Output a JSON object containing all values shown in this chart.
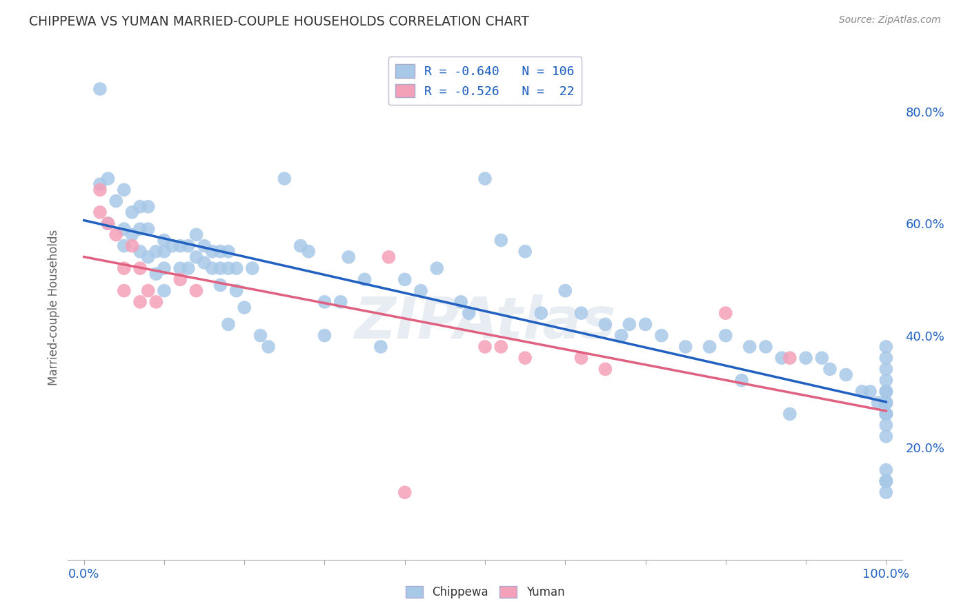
{
  "title": "CHIPPEWA VS YUMAN MARRIED-COUPLE HOUSEHOLDS CORRELATION CHART",
  "source": "Source: ZipAtlas.com",
  "ylabel": "Married-couple Households",
  "watermark": "ZIPAtlas",
  "chippewa_R": -0.64,
  "chippewa_N": 106,
  "yuman_R": -0.526,
  "yuman_N": 22,
  "chippewa_color": "#a8c8e8",
  "yuman_color": "#f4a0b8",
  "chippewa_line_color": "#2060c0",
  "yuman_line_color": "#e06080",
  "legend_text_color": "#2060c0",
  "background_color": "#ffffff",
  "grid_color": "#c8c8d8",
  "title_color": "#333333",
  "chippewa_x": [
    0.02,
    0.02,
    0.03,
    0.03,
    0.04,
    0.05,
    0.05,
    0.05,
    0.06,
    0.06,
    0.07,
    0.07,
    0.07,
    0.08,
    0.08,
    0.08,
    0.09,
    0.09,
    0.1,
    0.1,
    0.1,
    0.1,
    0.11,
    0.12,
    0.12,
    0.13,
    0.13,
    0.14,
    0.14,
    0.15,
    0.15,
    0.16,
    0.16,
    0.17,
    0.17,
    0.17,
    0.18,
    0.18,
    0.18,
    0.19,
    0.19,
    0.2,
    0.21,
    0.22,
    0.23,
    0.25,
    0.27,
    0.28,
    0.3,
    0.3,
    0.32,
    0.33,
    0.35,
    0.37,
    0.4,
    0.42,
    0.44,
    0.47,
    0.48,
    0.5,
    0.52,
    0.55,
    0.57,
    0.6,
    0.62,
    0.65,
    0.67,
    0.68,
    0.7,
    0.72,
    0.75,
    0.78,
    0.8,
    0.82,
    0.83,
    0.85,
    0.87,
    0.88,
    0.9,
    0.92,
    0.93,
    0.95,
    0.97,
    0.98,
    0.99,
    1.0,
    1.0,
    1.0,
    1.0,
    1.0,
    1.0,
    1.0,
    1.0,
    1.0,
    1.0,
    1.0,
    1.0,
    1.0,
    1.0,
    1.0,
    1.0,
    1.0,
    1.0,
    1.0,
    1.0,
    1.0
  ],
  "chippewa_y": [
    0.84,
    0.67,
    0.68,
    0.6,
    0.64,
    0.66,
    0.59,
    0.56,
    0.62,
    0.58,
    0.63,
    0.59,
    0.55,
    0.63,
    0.59,
    0.54,
    0.55,
    0.51,
    0.57,
    0.55,
    0.52,
    0.48,
    0.56,
    0.56,
    0.52,
    0.56,
    0.52,
    0.58,
    0.54,
    0.56,
    0.53,
    0.55,
    0.52,
    0.55,
    0.52,
    0.49,
    0.55,
    0.52,
    0.42,
    0.52,
    0.48,
    0.45,
    0.52,
    0.4,
    0.38,
    0.68,
    0.56,
    0.55,
    0.46,
    0.4,
    0.46,
    0.54,
    0.5,
    0.38,
    0.5,
    0.48,
    0.52,
    0.46,
    0.44,
    0.68,
    0.57,
    0.55,
    0.44,
    0.48,
    0.44,
    0.42,
    0.4,
    0.42,
    0.42,
    0.4,
    0.38,
    0.38,
    0.4,
    0.32,
    0.38,
    0.38,
    0.36,
    0.26,
    0.36,
    0.36,
    0.34,
    0.33,
    0.3,
    0.3,
    0.28,
    0.38,
    0.36,
    0.34,
    0.32,
    0.3,
    0.28,
    0.26,
    0.22,
    0.3,
    0.28,
    0.24,
    0.16,
    0.14,
    0.28,
    0.26,
    0.14,
    0.12,
    0.28,
    0.26,
    0.14,
    0.3
  ],
  "yuman_x": [
    0.02,
    0.02,
    0.03,
    0.04,
    0.05,
    0.05,
    0.06,
    0.07,
    0.07,
    0.08,
    0.09,
    0.12,
    0.14,
    0.38,
    0.5,
    0.52,
    0.55,
    0.62,
    0.65,
    0.8,
    0.88,
    0.4
  ],
  "yuman_y": [
    0.66,
    0.62,
    0.6,
    0.58,
    0.52,
    0.48,
    0.56,
    0.52,
    0.46,
    0.48,
    0.46,
    0.5,
    0.48,
    0.54,
    0.38,
    0.38,
    0.36,
    0.36,
    0.34,
    0.44,
    0.36,
    0.12
  ],
  "xlim": [
    -0.02,
    1.02
  ],
  "ylim": [
    0.0,
    0.9
  ],
  "xtick_positions": [
    0.0,
    0.1,
    0.2,
    0.3,
    0.4,
    0.5,
    0.6,
    0.7,
    0.8,
    0.9,
    1.0
  ],
  "xtick_labels_show": {
    "0.0": "0.0%",
    "1.0": "100.0%"
  },
  "ytick_positions": [
    0.2,
    0.4,
    0.6,
    0.8
  ],
  "ytick_labels": [
    "20.0%",
    "40.0%",
    "60.0%",
    "80.0%"
  ]
}
